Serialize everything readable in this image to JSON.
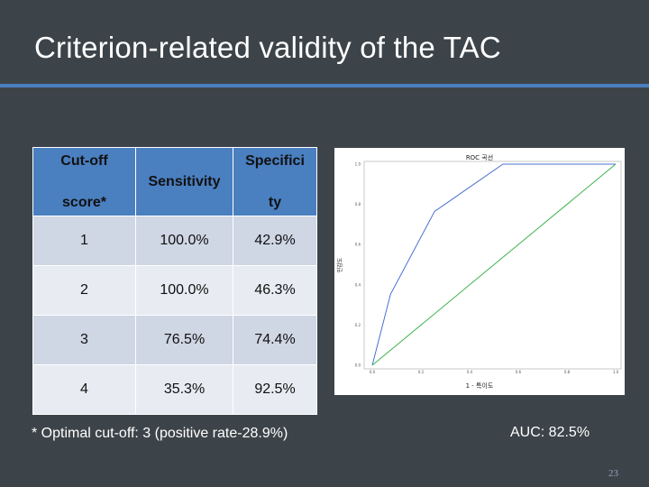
{
  "slide": {
    "title": "Criterion-related validity of the TAC",
    "footnote": "* Optimal cut-off: 3 (positive rate-28.9%)",
    "auc": "AUC: 82.5%",
    "page_number": "23",
    "accent_color": "#4a7fc0",
    "background_color": "#3d4449"
  },
  "table": {
    "headers": {
      "col1_line1": "Cut-off",
      "col1_line2": "score*",
      "col2": "Sensitivity",
      "col3_line1": "Specifici",
      "col3_line2": "ty"
    },
    "rows": [
      {
        "cutoff": "1",
        "sensitivity": "100.0%",
        "specificity": "42.9%"
      },
      {
        "cutoff": "2",
        "sensitivity": "100.0%",
        "specificity": "46.3%"
      },
      {
        "cutoff": "3",
        "sensitivity": "76.5%",
        "specificity": "74.4%"
      },
      {
        "cutoff": "4",
        "sensitivity": "35.3%",
        "specificity": "92.5%"
      }
    ]
  },
  "chart_data": {
    "type": "line",
    "title": "ROC 곡선",
    "xlabel": "1 - 특이도",
    "ylabel": "민감도",
    "xlim": [
      0,
      1
    ],
    "ylim": [
      0,
      1
    ],
    "x_ticks": [
      "0.0",
      "0.2",
      "0.4",
      "0.6",
      "0.8",
      "1.0"
    ],
    "y_ticks": [
      "0.0",
      "0.2",
      "0.4",
      "0.6",
      "0.8",
      "1.0"
    ],
    "grid": false,
    "series": [
      {
        "color": "#4a6fd0",
        "x": [
          0.0,
          0.075,
          0.256,
          0.537,
          0.571,
          1.0
        ],
        "y": [
          0.0,
          0.353,
          0.765,
          1.0,
          1.0,
          1.0
        ]
      },
      {
        "color": "#3cb34a",
        "x": [
          0.0,
          1.0
        ],
        "y": [
          0.0,
          1.0
        ]
      }
    ]
  }
}
